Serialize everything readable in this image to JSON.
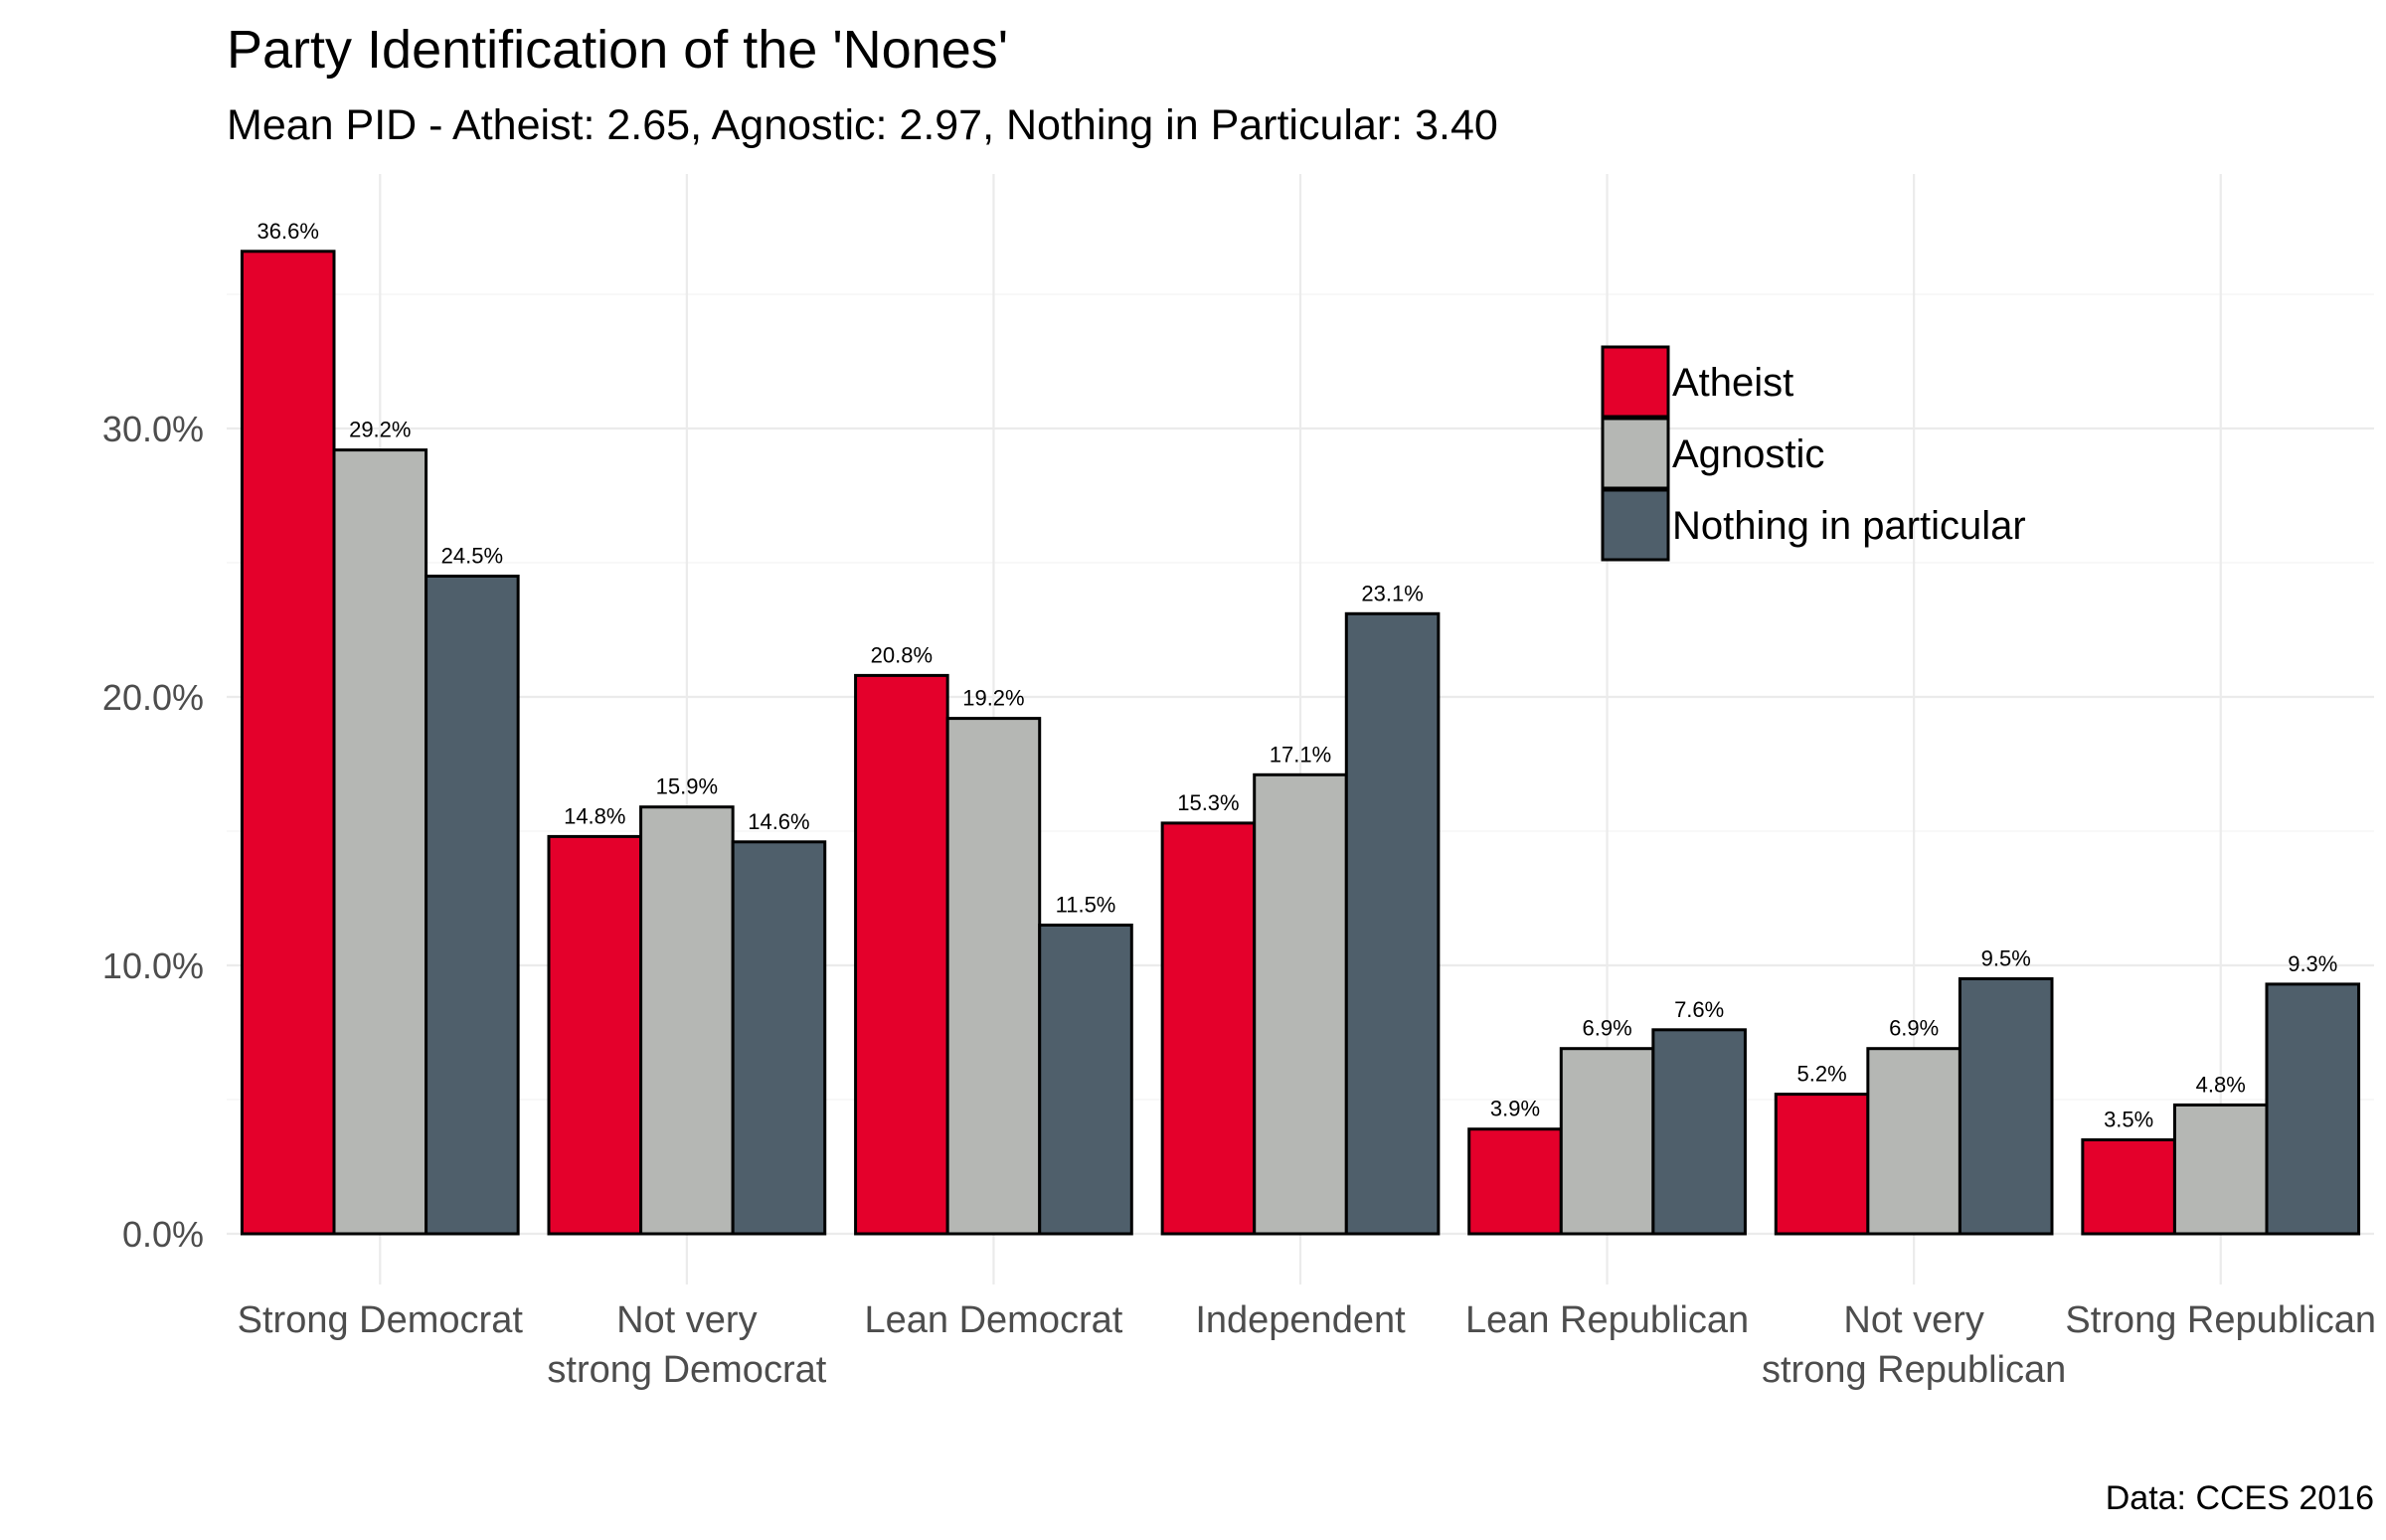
{
  "chart_data": {
    "type": "bar",
    "title": "Party Identification of the 'Nones'",
    "subtitle": "Mean PID - Atheist: 2.65, Agnostic: 2.97, Nothing in Particular: 3.40",
    "caption": "Data: CCES 2016",
    "xlabel": "",
    "ylabel": "",
    "ylim": [
      0,
      0.375
    ],
    "yticks": [
      0,
      0.1,
      0.2,
      0.3
    ],
    "ytick_labels": [
      "0.0%",
      "10.0%",
      "20.0%",
      "30.0%"
    ],
    "grid": true,
    "legend_position": "top-right",
    "categories": [
      [
        "Strong Democrat"
      ],
      [
        "Not very",
        "strong Democrat"
      ],
      [
        "Lean Democrat"
      ],
      [
        "Independent"
      ],
      [
        "Lean Republican"
      ],
      [
        "Not very",
        "strong Republican"
      ],
      [
        "Strong Republican"
      ]
    ],
    "series": [
      {
        "name": "Atheist",
        "color": "#E4002B",
        "values": [
          0.366,
          0.148,
          0.208,
          0.153,
          0.039,
          0.052,
          0.035
        ],
        "labels": [
          "36.6%",
          "14.8%",
          "20.8%",
          "15.3%",
          "3.9%",
          "5.2%",
          "3.5%"
        ]
      },
      {
        "name": "Agnostic",
        "color": "#B5B7B4",
        "values": [
          0.292,
          0.159,
          0.192,
          0.171,
          0.069,
          0.069,
          0.048
        ],
        "labels": [
          "29.2%",
          "15.9%",
          "19.2%",
          "17.1%",
          "6.9%",
          "6.9%",
          "4.8%"
        ]
      },
      {
        "name": "Nothing in particular",
        "color": "#4F5F6B",
        "values": [
          0.245,
          0.146,
          0.115,
          0.231,
          0.076,
          0.095,
          0.093
        ],
        "labels": [
          "24.5%",
          "14.6%",
          "11.5%",
          "23.1%",
          "7.6%",
          "9.5%",
          "9.3%"
        ]
      }
    ]
  }
}
